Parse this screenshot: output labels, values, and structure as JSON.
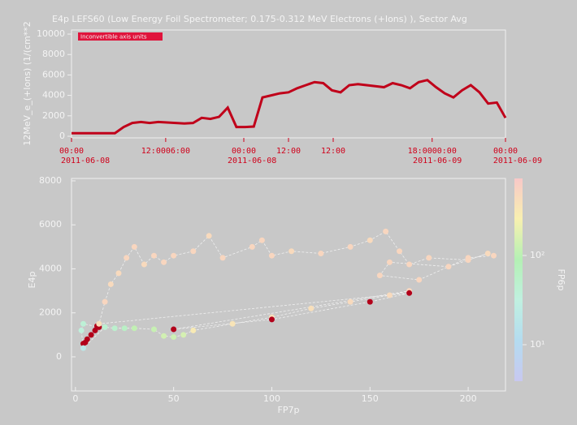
{
  "chart_data": [
    {
      "type": "line",
      "title": "E4p LEFS60 (Low Energy Foil Spectrometer; 0.175-0.312 MeV Electrons (+Ions) ), Sector Avg",
      "ylabel": "12MeV_e_(+Ions) (1/(cm**2",
      "annotation": "Inconvertible axis units",
      "x": [
        0,
        2,
        4,
        6,
        8,
        10,
        12,
        14,
        16,
        18,
        20,
        22,
        24,
        26,
        28,
        30,
        32,
        34,
        36,
        38,
        40,
        42,
        44,
        46,
        48,
        50,
        52,
        54,
        56,
        58,
        60,
        62,
        64,
        66,
        68,
        70,
        72,
        74,
        76,
        78,
        80,
        82,
        84,
        86,
        88,
        90,
        92,
        94,
        96,
        98,
        100
      ],
      "series": [
        {
          "color": "#c0001a",
          "values": [
            300,
            300,
            300,
            300,
            300,
            300,
            900,
            1300,
            1400,
            1300,
            1400,
            1350,
            1300,
            1250,
            1300,
            1800,
            1700,
            1900,
            2800,
            900,
            900,
            950,
            3800,
            4000,
            4200,
            4300,
            4700,
            5000,
            5300,
            5200,
            4500,
            4300,
            5000,
            5100,
            5000,
            4900,
            4800,
            5200,
            5000,
            4700,
            5300,
            5500,
            4800,
            4200,
            3800,
            4500,
            5000,
            4300,
            3200,
            3300,
            1800
          ]
        }
      ],
      "xlim": [
        0,
        100
      ],
      "ylim": [
        -160,
        10400
      ],
      "yticks": [
        0,
        2000,
        4000,
        6000,
        8000,
        10000
      ],
      "xticks": [
        {
          "value": 0,
          "label": "00:00"
        },
        {
          "value": 21.7,
          "label": "12:0006:00"
        },
        {
          "value": 39.7,
          "label": "00:00"
        },
        {
          "value": 50,
          "label": "12:00"
        },
        {
          "value": 60.3,
          "label": "12:00"
        },
        {
          "value": 83.1,
          "label": "18:0000:00"
        },
        {
          "value": 100,
          "label": "00:00"
        }
      ],
      "xticks2": [
        {
          "value": 3.2,
          "label": "2011-06-08"
        },
        {
          "value": 41.6,
          "label": "2011-06-08"
        },
        {
          "value": 84.3,
          "label": "2011-06-09"
        },
        {
          "value": 102.8,
          "label": "2011-06-09"
        }
      ],
      "tick_color": "#d0001a"
    },
    {
      "type": "scatter",
      "xlabel": "FP7p",
      "ylabel": "E4p",
      "clabel": "FP6p",
      "x": [
        4,
        5,
        6,
        8,
        10,
        11,
        12,
        4,
        3,
        4,
        15,
        20,
        25,
        30,
        40,
        45,
        50,
        55,
        60,
        80,
        100,
        120,
        140,
        160,
        170,
        50,
        100,
        150,
        170,
        12,
        15,
        18,
        22,
        26,
        30,
        35,
        40,
        45,
        50,
        60,
        68,
        75,
        90,
        95,
        100,
        110,
        125,
        140,
        150,
        158,
        165,
        170,
        180,
        200,
        210,
        190,
        160,
        155,
        175,
        200,
        213
      ],
      "y": [
        600,
        650,
        800,
        1000,
        1200,
        1400,
        1350,
        1500,
        1200,
        400,
        1350,
        1300,
        1300,
        1300,
        1250,
        950,
        900,
        1000,
        1200,
        1500,
        1800,
        2200,
        2500,
        2800,
        3000,
        1250,
        1700,
        2500,
        2900,
        1500,
        2500,
        3300,
        3800,
        4500,
        5000,
        4200,
        4600,
        4300,
        4600,
        4800,
        5500,
        4500,
        5000,
        5300,
        4600,
        4800,
        4700,
        5000,
        5300,
        5700,
        4800,
        4200,
        4500,
        4400,
        4700,
        4100,
        4300,
        3700,
        3500,
        4500,
        4600
      ],
      "c": [
        900,
        900,
        900,
        900,
        900,
        900,
        900,
        40,
        35,
        20,
        45,
        50,
        60,
        110,
        120,
        140,
        130,
        150,
        300,
        350,
        400,
        400,
        450,
        450,
        500,
        1000,
        1000,
        1000,
        1000,
        400,
        500,
        450,
        450,
        500,
        500,
        450,
        500,
        500,
        500,
        500,
        450,
        500,
        500,
        500,
        500,
        450,
        500,
        500,
        450,
        500,
        500,
        500,
        500,
        500,
        450,
        500,
        500,
        500,
        500,
        500,
        500
      ],
      "xlim": [
        -2,
        219
      ],
      "ylim": [
        -1550,
        8110
      ],
      "clim": [
        3.9,
        730
      ],
      "xticks": [
        0,
        50,
        100,
        150,
        200
      ],
      "yticks": [
        0,
        2000,
        4000,
        6000,
        8000
      ],
      "cticks": [
        {
          "value": 10,
          "label": "10¹"
        },
        {
          "value": 100,
          "label": "10²"
        }
      ],
      "clog": true,
      "colormap": [
        "#c8c8f0",
        "#b4dcf0",
        "#c0f0e0",
        "#b4f0b4",
        "#f8f0b0",
        "#f8c8c8"
      ],
      "over_color": "#b2001a",
      "line_color": "#f0f0f0"
    }
  ]
}
